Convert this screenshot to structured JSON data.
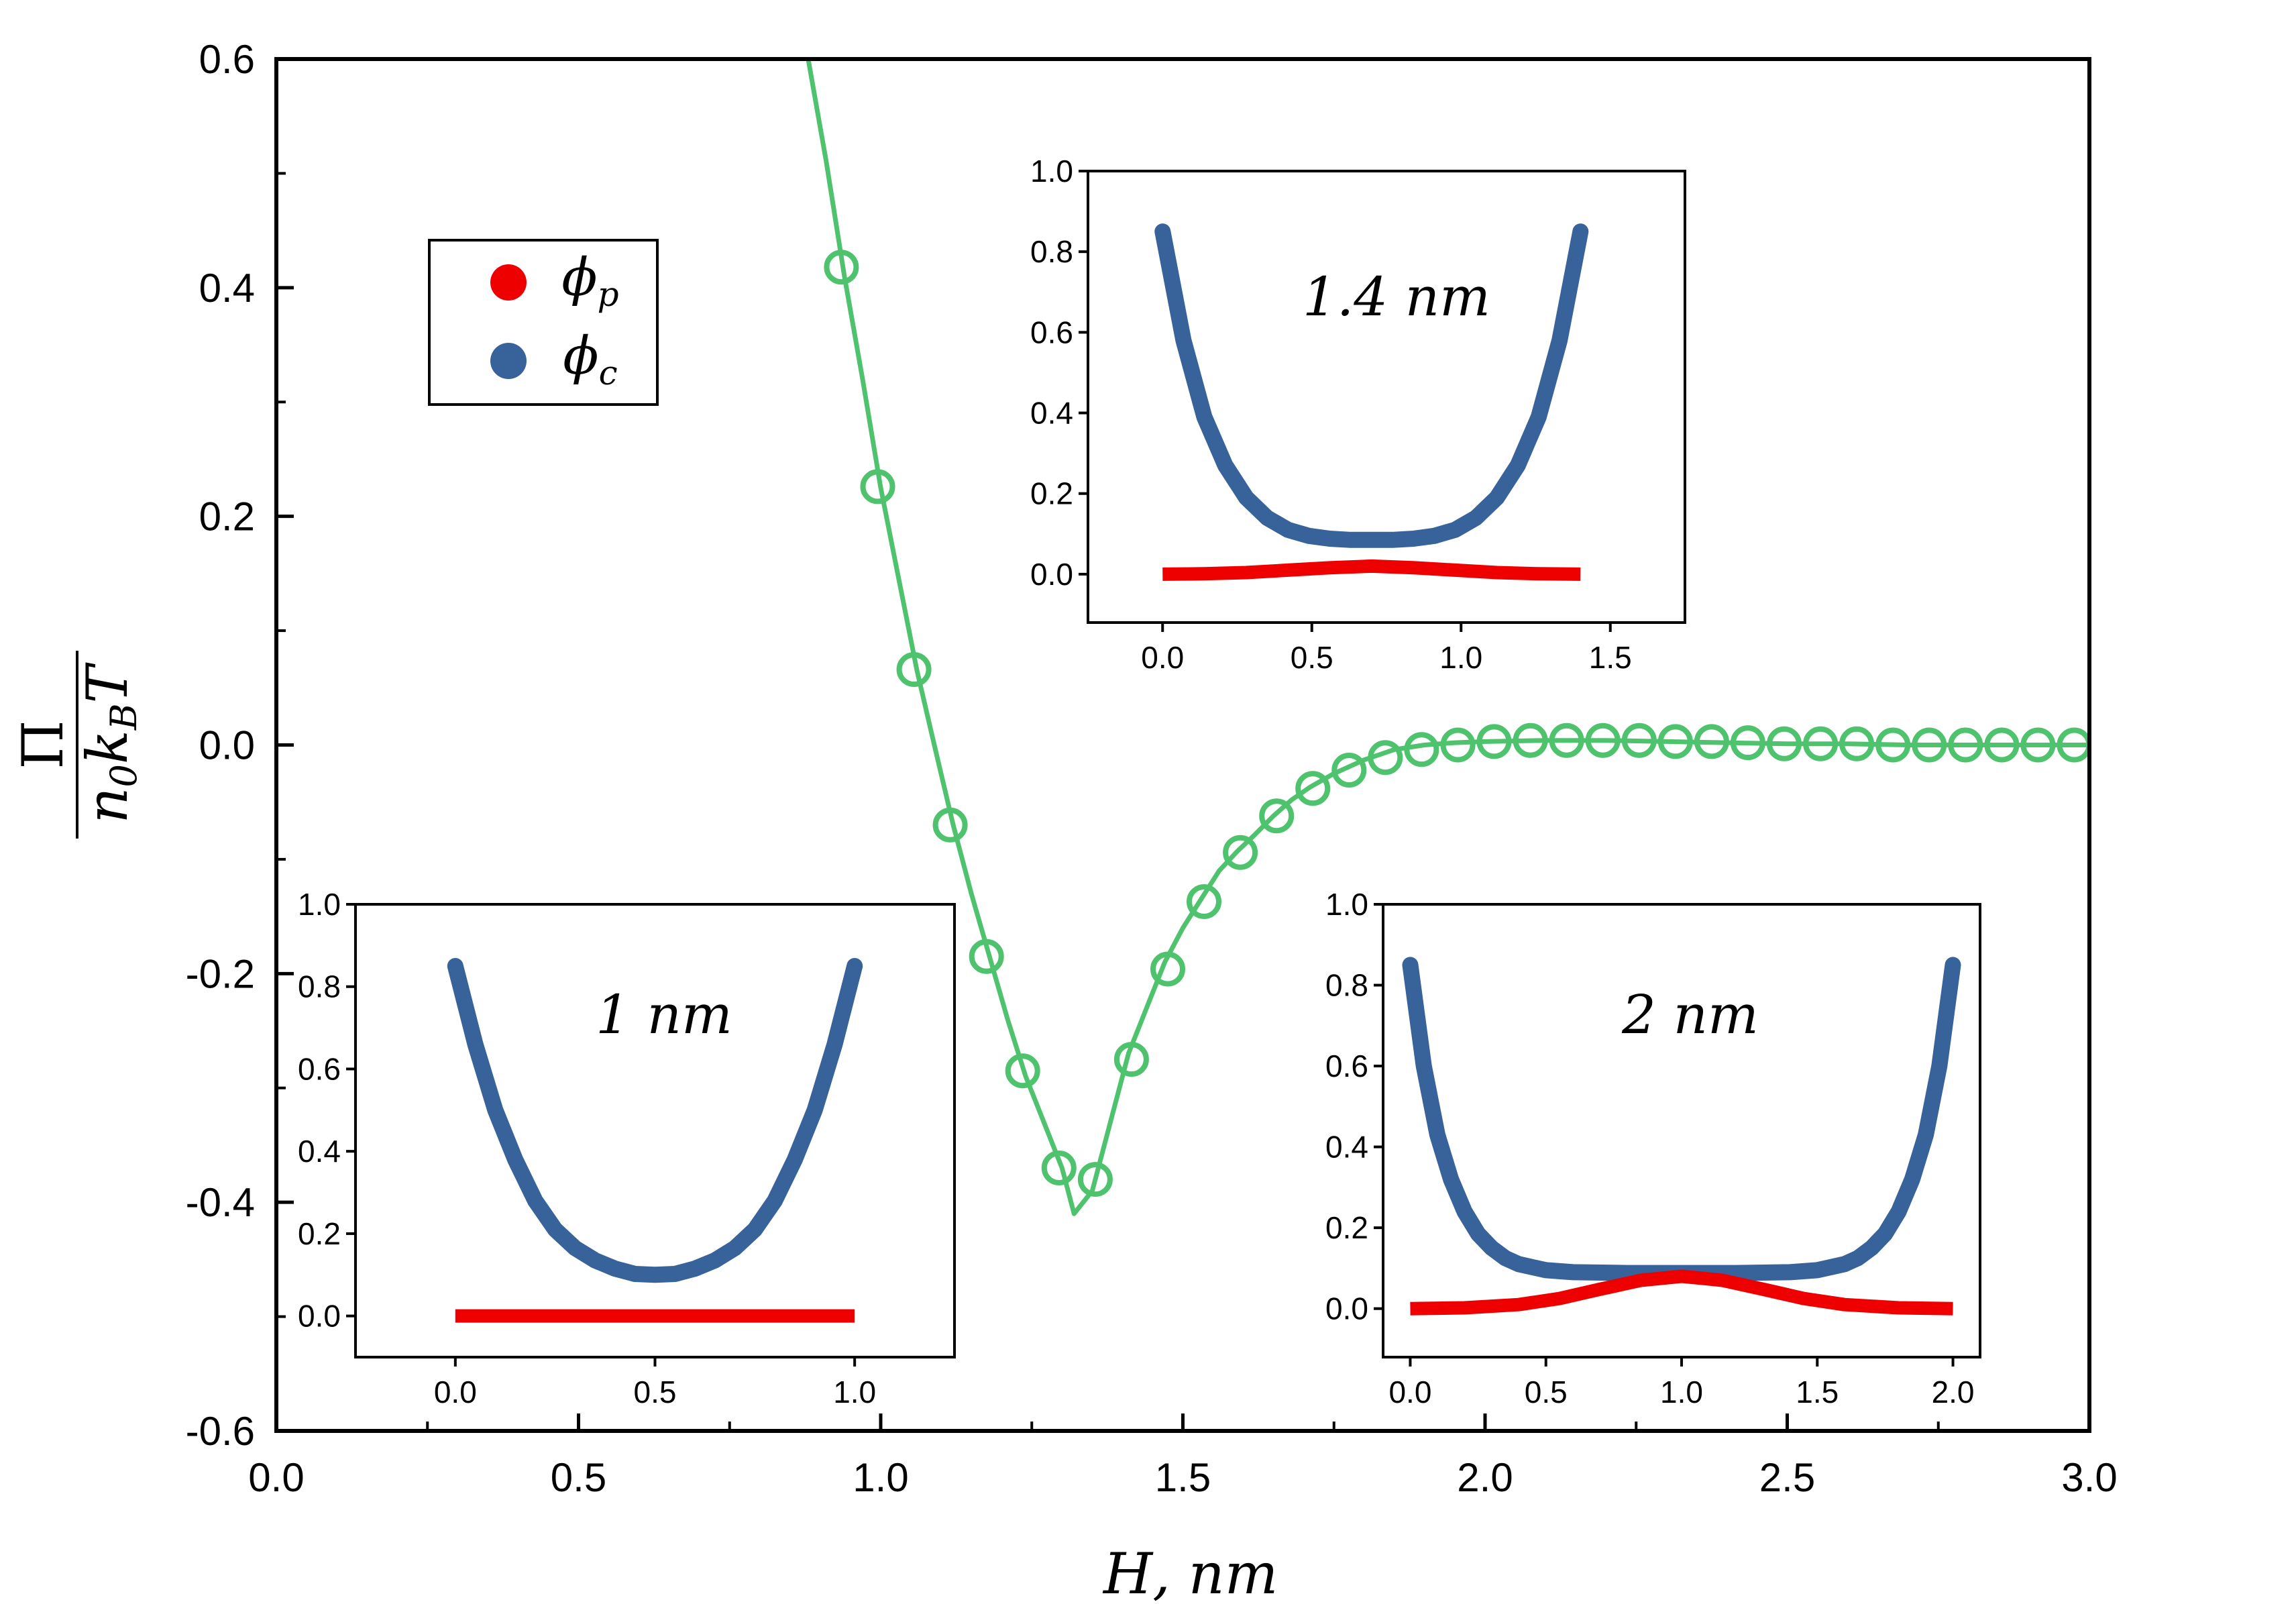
{
  "chart_data": {
    "main": {
      "type": "line",
      "xlabel": "H, nm",
      "ylabel": "Π / (n0 kB T)",
      "xlim": [
        0.0,
        3.0
      ],
      "ylim": [
        -0.6,
        0.6
      ],
      "x_ticks": [
        "0.0",
        "0.5",
        "1.0",
        "1.5",
        "2.0",
        "2.5",
        "3.0"
      ],
      "y_ticks": [
        "0.6",
        "0.4",
        "0.2",
        "0.0",
        "-0.2",
        "-0.4",
        "-0.6"
      ],
      "line_color": "#4ec26d",
      "series": [
        {
          "name": "curve",
          "style": "line",
          "x": [
            0.88,
            0.91,
            0.94,
            0.97,
            1.0,
            1.03,
            1.06,
            1.09,
            1.12,
            1.15,
            1.18,
            1.21,
            1.24,
            1.27,
            1.3,
            1.32,
            1.35,
            1.38,
            1.41,
            1.44,
            1.47,
            1.5,
            1.53,
            1.56,
            1.59,
            1.62,
            1.65,
            1.68,
            1.71,
            1.75,
            1.8,
            1.85,
            1.9,
            1.95,
            2.0,
            2.1,
            2.2,
            2.3,
            2.4,
            2.5,
            2.6,
            2.7,
            2.8,
            2.9,
            3.0
          ],
          "y": [
            0.6,
            0.51,
            0.41,
            0.32,
            0.225,
            0.145,
            0.065,
            -0.003,
            -0.07,
            -0.13,
            -0.185,
            -0.24,
            -0.29,
            -0.33,
            -0.37,
            -0.41,
            -0.39,
            -0.33,
            -0.27,
            -0.23,
            -0.19,
            -0.16,
            -0.135,
            -0.11,
            -0.093,
            -0.078,
            -0.062,
            -0.048,
            -0.037,
            -0.025,
            -0.013,
            -0.004,
            0.0,
            0.002,
            0.003,
            0.004,
            0.004,
            0.003,
            0.002,
            0.001,
            0.001,
            0.0,
            0.0,
            0.0,
            0.0
          ]
        },
        {
          "name": "markers",
          "style": "open-circle",
          "x": [
            0.935,
            0.995,
            1.055,
            1.115,
            1.175,
            1.235,
            1.295,
            1.355,
            1.415,
            1.475,
            1.535,
            1.595,
            1.655,
            1.715,
            1.775,
            1.835,
            1.895,
            1.955,
            2.015,
            2.075,
            2.135,
            2.195,
            2.255,
            2.315,
            2.375,
            2.435,
            2.495,
            2.555,
            2.615,
            2.675,
            2.735,
            2.795,
            2.855,
            2.915,
            2.975
          ],
          "y": [
            0.418,
            0.226,
            0.066,
            -0.07,
            -0.185,
            -0.285,
            -0.37,
            -0.38,
            -0.275,
            -0.196,
            -0.137,
            -0.094,
            -0.062,
            -0.038,
            -0.022,
            -0.011,
            -0.004,
            0.0,
            0.003,
            0.004,
            0.004,
            0.004,
            0.004,
            0.003,
            0.003,
            0.002,
            0.001,
            0.001,
            0.001,
            0.0,
            0.0,
            0.0,
            0.0,
            0.0,
            0.0
          ]
        }
      ]
    },
    "legend": {
      "entries": [
        {
          "label": "φp",
          "color": "#ee0000"
        },
        {
          "label": "φc",
          "color": "#37629a"
        }
      ]
    },
    "insets": [
      {
        "name": "inset-1.4nm",
        "annotation": "1.4 nm",
        "xlim": [
          -0.25,
          1.75
        ],
        "ylim": [
          -0.12,
          1.0
        ],
        "x_ticks": [
          "0.0",
          "0.5",
          "1.0",
          "1.5"
        ],
        "y_ticks": [
          "1.0",
          "0.8",
          "0.6",
          "0.4",
          "0.2",
          "0.0"
        ],
        "series": [
          {
            "name": "phi_c",
            "color": "#37629a",
            "x": [
              0.0,
              0.07,
              0.14,
              0.21,
              0.28,
              0.35,
              0.42,
              0.49,
              0.56,
              0.63,
              0.7,
              0.77,
              0.84,
              0.91,
              0.98,
              1.05,
              1.12,
              1.19,
              1.26,
              1.33,
              1.4
            ],
            "y": [
              0.85,
              0.58,
              0.39,
              0.27,
              0.19,
              0.14,
              0.11,
              0.095,
              0.088,
              0.085,
              0.085,
              0.085,
              0.088,
              0.095,
              0.11,
              0.14,
              0.19,
              0.27,
              0.39,
              0.58,
              0.85
            ]
          },
          {
            "name": "phi_p",
            "color": "#ee0000",
            "x": [
              0.0,
              0.14,
              0.28,
              0.42,
              0.56,
              0.7,
              0.84,
              0.98,
              1.12,
              1.26,
              1.4
            ],
            "y": [
              0.0,
              0.001,
              0.004,
              0.01,
              0.016,
              0.02,
              0.016,
              0.01,
              0.004,
              0.001,
              0.0
            ]
          }
        ]
      },
      {
        "name": "inset-1nm",
        "annotation": "1 nm",
        "xlim": [
          -0.25,
          1.25
        ],
        "ylim": [
          -0.1,
          1.0
        ],
        "x_ticks": [
          "0.0",
          "0.5",
          "1.0"
        ],
        "y_ticks": [
          "1.0",
          "0.8",
          "0.6",
          "0.4",
          "0.2",
          "0.0"
        ],
        "series": [
          {
            "name": "phi_c",
            "color": "#37629a",
            "x": [
              0.0,
              0.05,
              0.1,
              0.15,
              0.2,
              0.25,
              0.3,
              0.35,
              0.4,
              0.45,
              0.5,
              0.55,
              0.6,
              0.65,
              0.7,
              0.75,
              0.8,
              0.85,
              0.9,
              0.95,
              1.0
            ],
            "y": [
              0.85,
              0.66,
              0.5,
              0.38,
              0.28,
              0.21,
              0.165,
              0.135,
              0.115,
              0.102,
              0.1,
              0.102,
              0.115,
              0.135,
              0.165,
              0.21,
              0.28,
              0.38,
              0.5,
              0.66,
              0.85
            ]
          },
          {
            "name": "phi_p",
            "color": "#ee0000",
            "x": [
              0.0,
              1.0
            ],
            "y": [
              0.0,
              0.0
            ]
          }
        ]
      },
      {
        "name": "inset-2nm",
        "annotation": "2 nm",
        "xlim": [
          -0.1,
          2.1
        ],
        "ylim": [
          -0.12,
          1.0
        ],
        "x_ticks": [
          "0.0",
          "0.5",
          "1.0",
          "1.5",
          "2.0"
        ],
        "y_ticks": [
          "1.0",
          "0.8",
          "0.6",
          "0.4",
          "0.2",
          "0.0"
        ],
        "series": [
          {
            "name": "phi_c",
            "color": "#37629a",
            "x": [
              0.0,
              0.05,
              0.1,
              0.15,
              0.2,
              0.25,
              0.3,
              0.35,
              0.4,
              0.5,
              0.6,
              0.8,
              1.0,
              1.2,
              1.4,
              1.5,
              1.6,
              1.65,
              1.7,
              1.75,
              1.8,
              1.85,
              1.9,
              1.95,
              2.0
            ],
            "y": [
              0.85,
              0.6,
              0.43,
              0.32,
              0.24,
              0.185,
              0.15,
              0.125,
              0.11,
              0.095,
              0.09,
              0.088,
              0.088,
              0.088,
              0.09,
              0.095,
              0.11,
              0.125,
              0.15,
              0.185,
              0.24,
              0.32,
              0.43,
              0.6,
              0.85
            ]
          },
          {
            "name": "phi_p",
            "color": "#ee0000",
            "x": [
              0.0,
              0.2,
              0.4,
              0.55,
              0.7,
              0.85,
              1.0,
              1.15,
              1.3,
              1.45,
              1.6,
              1.8,
              2.0
            ],
            "y": [
              0.0,
              0.002,
              0.01,
              0.025,
              0.048,
              0.07,
              0.08,
              0.07,
              0.048,
              0.025,
              0.01,
              0.002,
              0.0
            ]
          }
        ]
      }
    ]
  }
}
